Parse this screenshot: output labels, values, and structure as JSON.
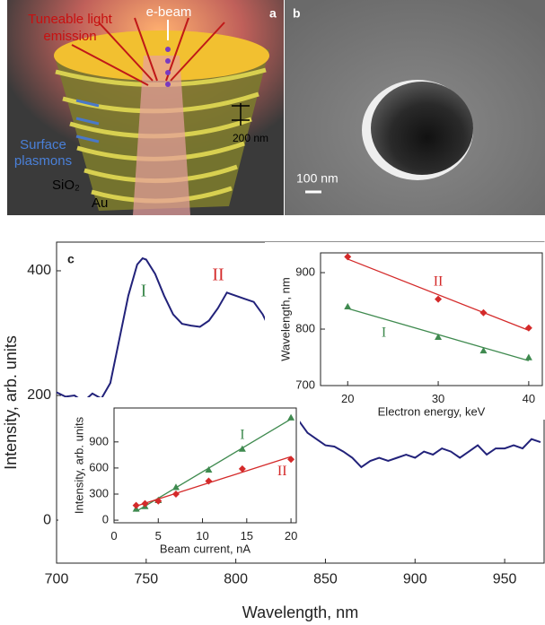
{
  "panel_a": {
    "label": "a",
    "beam": "e-beam",
    "emission_lines": [
      "Tuneable light",
      "emission"
    ],
    "period": "200 nm",
    "plasmon_lines": [
      "Surface",
      "plasmons"
    ],
    "dielectric": "SiO₂",
    "metal": "Au"
  },
  "panel_b": {
    "label": "b",
    "scale": "100 nm"
  },
  "chart_data": [
    {
      "type": "line",
      "panel_label": "c",
      "x_label": "Wavelength, nm",
      "y_label": "Intensity, arb. units",
      "x": [
        700,
        705,
        710,
        715,
        720,
        725,
        730,
        735,
        740,
        745,
        748,
        750,
        755,
        760,
        765,
        770,
        775,
        780,
        785,
        790,
        795,
        800,
        805,
        810,
        815,
        820,
        825,
        830,
        835,
        840,
        845,
        850,
        855,
        860,
        865,
        870,
        875,
        880,
        885,
        890,
        895,
        900,
        905,
        910,
        915,
        920,
        925,
        930,
        935,
        940,
        945,
        950,
        955,
        960,
        965,
        970
      ],
      "values": [
        205,
        198,
        200,
        190,
        203,
        195,
        220,
        290,
        360,
        410,
        420,
        418,
        395,
        360,
        330,
        315,
        312,
        310,
        320,
        340,
        365,
        360,
        355,
        350,
        330,
        300,
        250,
        200,
        160,
        140,
        130,
        120,
        118,
        110,
        100,
        85,
        95,
        100,
        95,
        100,
        105,
        100,
        110,
        105,
        115,
        110,
        100,
        110,
        120,
        105,
        115,
        115,
        120,
        115,
        130,
        125
      ],
      "color": "#22227a",
      "xlim": [
        700,
        972
      ],
      "ylim": [
        -69,
        446
      ],
      "xticks": [
        700,
        750,
        800,
        850,
        900,
        950
      ],
      "yticks": [
        0,
        200,
        400
      ],
      "annotations": [
        {
          "text": "I",
          "color": "#3f8a4f"
        },
        {
          "text": "II",
          "color": "#d42a2a"
        }
      ]
    },
    {
      "type": "scatter",
      "x_label": "Electron energy, keV",
      "y_label": "Wavelength, nm",
      "x": [
        20,
        30,
        35,
        40
      ],
      "series": [
        {
          "name": "I",
          "color": "#3f8a4f",
          "marker": "triangle",
          "values": [
            840,
            786,
            762,
            750
          ]
        },
        {
          "name": "II",
          "color": "#d42a2a",
          "marker": "diamond",
          "values": [
            928,
            853,
            829,
            802
          ]
        }
      ],
      "xlim": [
        17,
        41.5
      ],
      "ylim": [
        700,
        935
      ],
      "xticks": [
        20,
        30,
        40
      ],
      "yticks": [
        700,
        800,
        900
      ],
      "fit": true
    },
    {
      "type": "scatter",
      "x_label": "Beam current, nA",
      "y_label": "Intensity, arb. units",
      "x": [
        2.5,
        3.5,
        5,
        7,
        10.7,
        14.5,
        20
      ],
      "series": [
        {
          "name": "I",
          "color": "#3f8a4f",
          "marker": "triangle",
          "values": [
            130,
            160,
            230,
            380,
            580,
            820,
            1180
          ]
        },
        {
          "name": "II",
          "color": "#d42a2a",
          "marker": "diamond",
          "values": [
            170,
            190,
            220,
            300,
            450,
            590,
            700
          ]
        }
      ],
      "xlim": [
        0,
        20.6
      ],
      "ylim": [
        -30,
        1290
      ],
      "xticks": [
        0,
        5,
        10,
        15,
        20
      ],
      "yticks": [
        0,
        300,
        600,
        900
      ],
      "fit": true
    }
  ]
}
